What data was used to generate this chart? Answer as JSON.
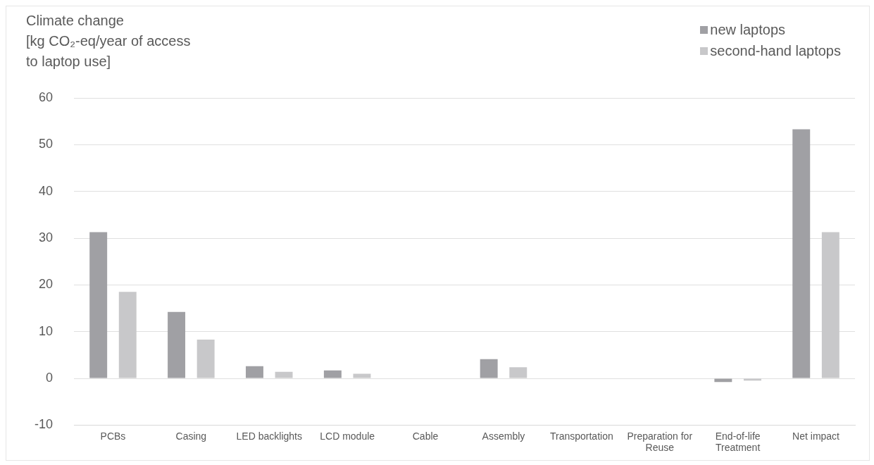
{
  "chart_data": {
    "type": "bar",
    "title": "Climate change",
    "ylabel": "[kg CO₂-eq/year of access to laptop use]",
    "categories": [
      "PCBs",
      "Casing",
      "LED backlights",
      "LCD module",
      "Cable",
      "Assembly",
      "Transportation",
      "Preparation for Reuse",
      "End-of-life Treatment",
      "Net impact"
    ],
    "series": [
      {
        "name": "new laptops",
        "color": "#a0a0a4",
        "values": [
          31.3,
          14.2,
          2.6,
          1.7,
          0,
          4.1,
          0,
          0,
          -0.8,
          53.3
        ]
      },
      {
        "name": "second-hand laptops",
        "color": "#c8c8ca",
        "values": [
          18.5,
          8.3,
          1.4,
          1,
          0,
          2.4,
          0,
          0.1,
          -0.5,
          31.3
        ]
      }
    ],
    "ylim": [
      -10,
      60
    ],
    "yticks": [
      -10,
      0,
      10,
      20,
      30,
      40,
      50,
      60
    ],
    "grid": "y",
    "legend": "top right"
  }
}
